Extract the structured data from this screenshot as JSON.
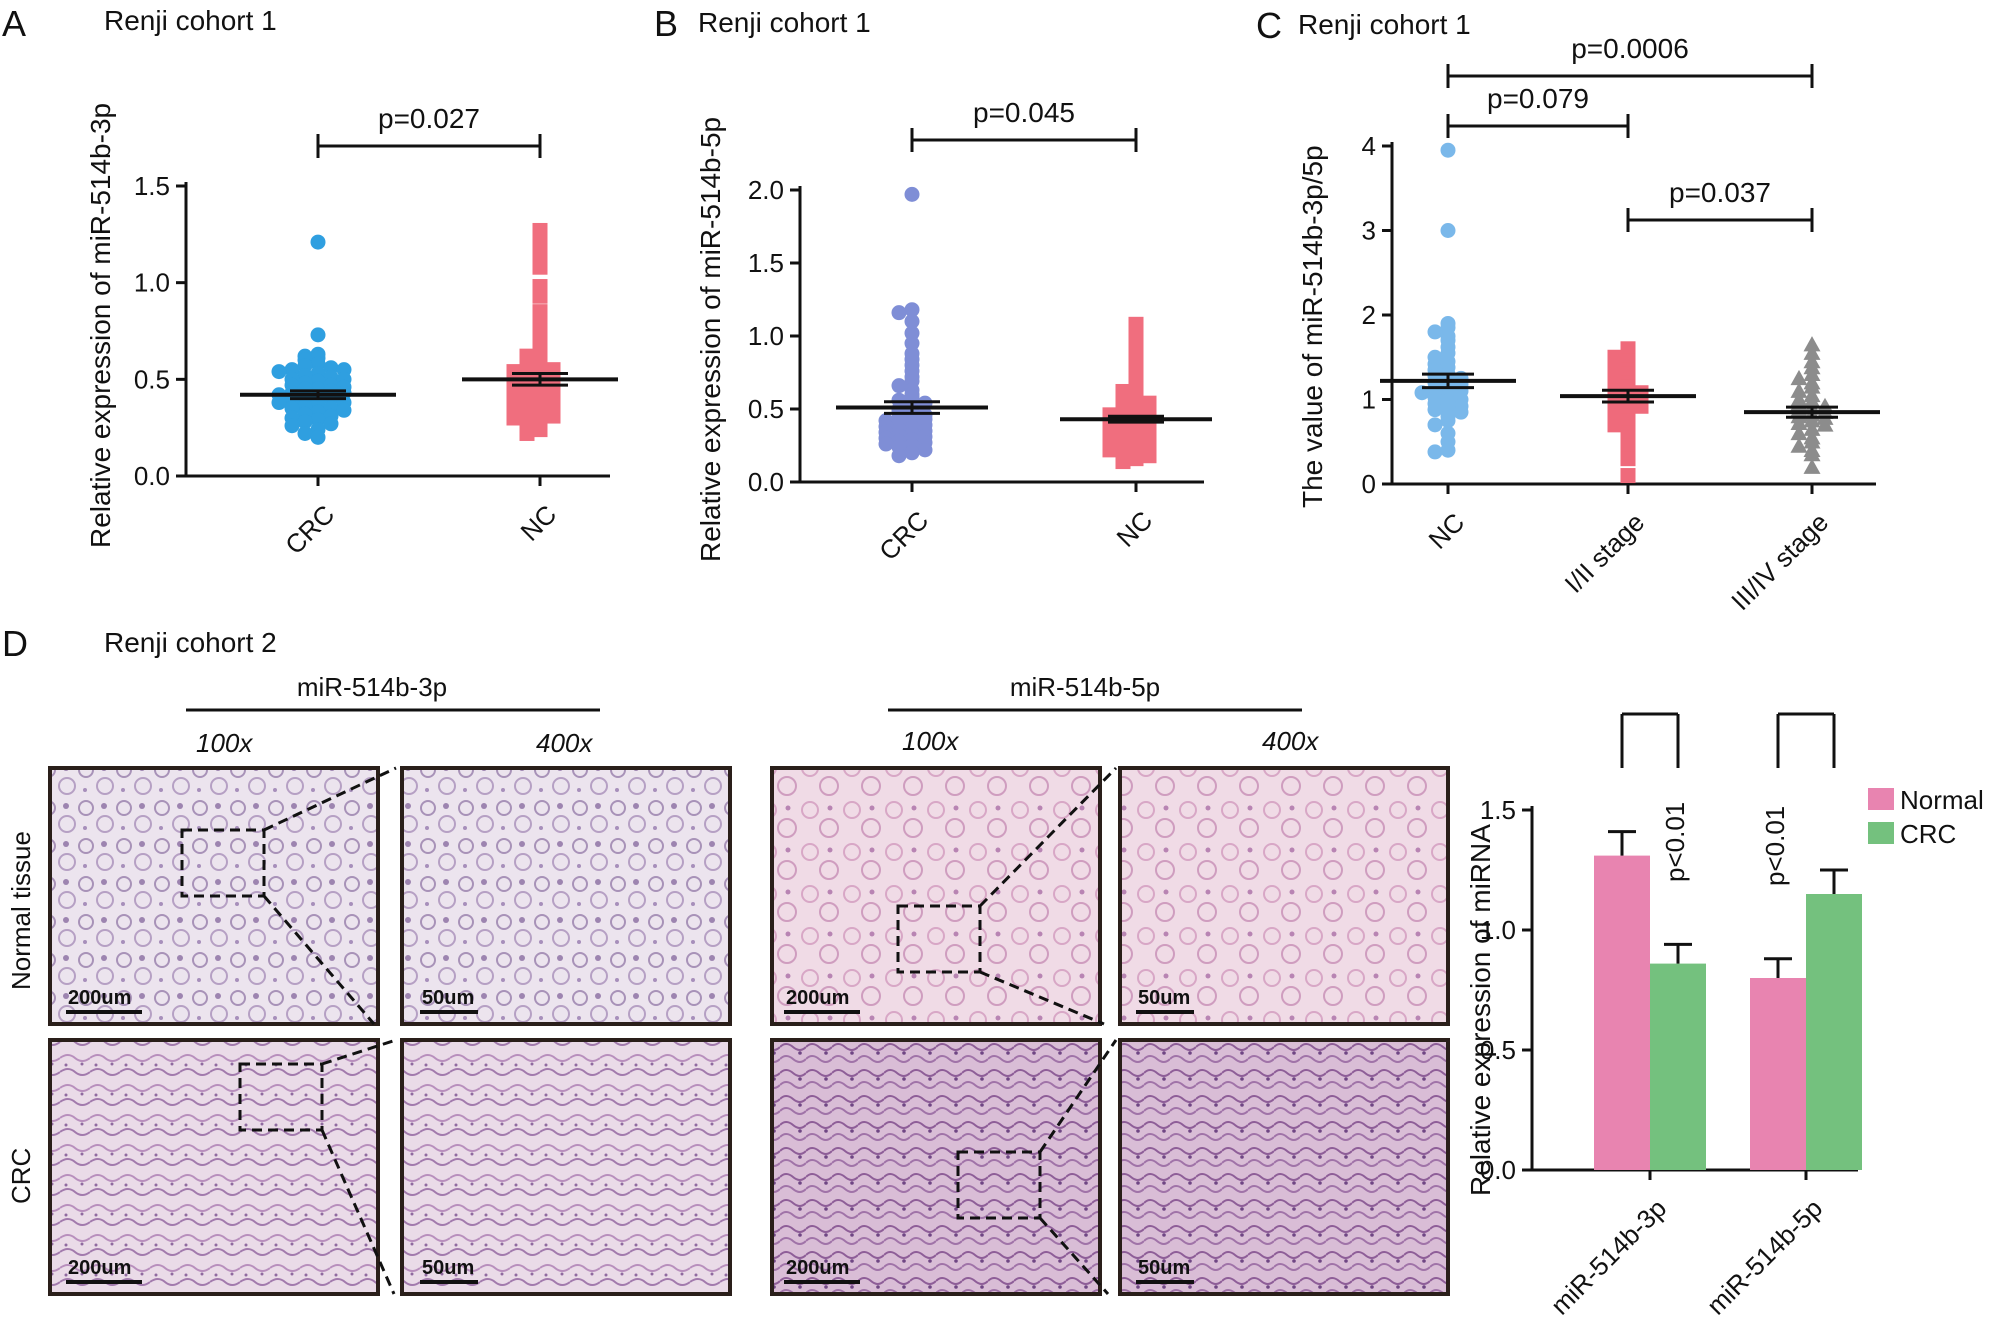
{
  "colors": {
    "crc_blue": "#2f9fe0",
    "nc_pink": "#f06e7e",
    "crc_purple": "#7f8ed6",
    "nc_light_blue": "#7ab8ea",
    "stage12_pink": "#ef6a7b",
    "stage34_gray": "#8c8c8c",
    "bar_normal": "#e884b0",
    "bar_crc": "#74c17e",
    "tissue_stain": "#c9a6c8"
  },
  "panels": {
    "A": {
      "letter": "A",
      "cohort": "Renji cohort 1"
    },
    "B": {
      "letter": "B",
      "cohort": "Renji cohort 1"
    },
    "C": {
      "letter": "C",
      "cohort": "Renji cohort 1"
    },
    "D": {
      "letter": "D",
      "cohort": "Renji cohort 2",
      "group_3p": "miR-514b-3p",
      "group_5p": "miR-514b-5p",
      "mag_100": "100x",
      "mag_400": "400x",
      "row_normal": "Normal tissue",
      "row_crc": "CRC",
      "scale_200": "200um",
      "scale_50": "50um"
    }
  },
  "chart_data": [
    {
      "id": "A",
      "type": "scatter",
      "title": "Renji cohort 1",
      "ylabel": "Relative expression of miR-514b-3p",
      "ylim": [
        0,
        1.5
      ],
      "yticks": [
        "0.0",
        "0.5",
        "1.0",
        "1.5"
      ],
      "categories": [
        "CRC",
        "NC"
      ],
      "means": [
        0.42,
        0.5
      ],
      "sem": [
        0.02,
        0.03
      ],
      "pvalues": [
        {
          "label": "p=0.027",
          "from": 0,
          "to": 1
        }
      ],
      "series": [
        {
          "name": "CRC",
          "marker": "circle",
          "values": [
            1.21,
            0.73,
            0.63,
            0.62,
            0.61,
            0.6,
            0.58,
            0.57,
            0.56,
            0.55,
            0.55,
            0.54,
            0.53,
            0.52,
            0.51,
            0.5,
            0.5,
            0.49,
            0.48,
            0.47,
            0.47,
            0.46,
            0.45,
            0.45,
            0.44,
            0.43,
            0.43,
            0.42,
            0.41,
            0.4,
            0.4,
            0.39,
            0.38,
            0.38,
            0.37,
            0.36,
            0.35,
            0.35,
            0.34,
            0.33,
            0.32,
            0.31,
            0.3,
            0.29,
            0.28,
            0.27,
            0.26,
            0.24,
            0.22,
            0.2
          ]
        },
        {
          "name": "NC",
          "marker": "square",
          "values": [
            1.27,
            1.22,
            1.15,
            1.08,
            0.98,
            0.93,
            0.85,
            0.8,
            0.75,
            0.7,
            0.66,
            0.64,
            0.62,
            0.6,
            0.58,
            0.57,
            0.55,
            0.54,
            0.53,
            0.52,
            0.51,
            0.5,
            0.49,
            0.48,
            0.47,
            0.46,
            0.45,
            0.44,
            0.43,
            0.42,
            0.41,
            0.4,
            0.39,
            0.38,
            0.37,
            0.36,
            0.35,
            0.34,
            0.33,
            0.32,
            0.31,
            0.3,
            0.28,
            0.26,
            0.24,
            0.22
          ]
        }
      ]
    },
    {
      "id": "B",
      "type": "scatter",
      "title": "Renji cohort 1",
      "ylabel": "Relative expression of miR-514b-5p",
      "ylim": [
        0,
        2.0
      ],
      "yticks": [
        "0.0",
        "0.5",
        "1.0",
        "1.5",
        "2.0"
      ],
      "categories": [
        "CRC",
        "NC"
      ],
      "means": [
        0.51,
        0.43
      ],
      "sem": [
        0.04,
        0.02
      ],
      "pvalues": [
        {
          "label": "p=0.045",
          "from": 0,
          "to": 1
        }
      ],
      "series": [
        {
          "name": "CRC",
          "marker": "circle",
          "values": [
            1.97,
            1.18,
            1.16,
            1.1,
            1.02,
            0.95,
            0.88,
            0.84,
            0.8,
            0.76,
            0.72,
            0.69,
            0.66,
            0.63,
            0.6,
            0.58,
            0.56,
            0.54,
            0.52,
            0.5,
            0.49,
            0.48,
            0.46,
            0.45,
            0.44,
            0.43,
            0.42,
            0.41,
            0.4,
            0.39,
            0.38,
            0.37,
            0.36,
            0.35,
            0.34,
            0.33,
            0.32,
            0.31,
            0.3,
            0.29,
            0.28,
            0.27,
            0.26,
            0.25,
            0.24,
            0.22,
            0.2,
            0.18
          ]
        },
        {
          "name": "NC",
          "marker": "square",
          "values": [
            1.08,
            1.02,
            0.96,
            0.9,
            0.82,
            0.75,
            0.7,
            0.65,
            0.62,
            0.58,
            0.56,
            0.54,
            0.52,
            0.5,
            0.49,
            0.48,
            0.47,
            0.46,
            0.45,
            0.44,
            0.43,
            0.42,
            0.41,
            0.4,
            0.39,
            0.38,
            0.37,
            0.36,
            0.35,
            0.34,
            0.33,
            0.32,
            0.31,
            0.3,
            0.29,
            0.28,
            0.27,
            0.26,
            0.25,
            0.24,
            0.23,
            0.22,
            0.21,
            0.2,
            0.18,
            0.16,
            0.14
          ]
        }
      ]
    },
    {
      "id": "C",
      "type": "scatter",
      "title": "Renji cohort 1",
      "ylabel": "The value of miR-514b-3p/5p",
      "ylim": [
        0,
        4
      ],
      "yticks": [
        "0",
        "1",
        "2",
        "3",
        "4"
      ],
      "categories": [
        "NC",
        "I/II stage",
        "III/IV stage"
      ],
      "means": [
        1.22,
        1.04,
        0.85
      ],
      "sem": [
        0.08,
        0.07,
        0.06
      ],
      "pvalues": [
        {
          "label": "p=0.0006",
          "from": 0,
          "to": 2
        },
        {
          "label": "p=0.079",
          "from": 0,
          "to": 1
        },
        {
          "label": "p=0.037",
          "from": 1,
          "to": 2
        }
      ],
      "series": [
        {
          "name": "NC",
          "marker": "circle",
          "values": [
            3.95,
            3.0,
            1.9,
            1.85,
            1.8,
            1.75,
            1.7,
            1.62,
            1.55,
            1.5,
            1.45,
            1.42,
            1.38,
            1.35,
            1.3,
            1.28,
            1.25,
            1.22,
            1.2,
            1.18,
            1.15,
            1.12,
            1.1,
            1.08,
            1.05,
            1.02,
            1.0,
            0.98,
            0.95,
            0.92,
            0.9,
            0.88,
            0.85,
            0.8,
            0.75,
            0.7,
            0.6,
            0.5,
            0.4,
            0.38
          ]
        },
        {
          "name": "I/II stage",
          "marker": "square",
          "values": [
            1.6,
            1.55,
            1.5,
            1.45,
            1.4,
            1.35,
            1.3,
            1.25,
            1.2,
            1.15,
            1.1,
            1.08,
            1.05,
            1.02,
            1.0,
            0.98,
            0.95,
            0.92,
            0.9,
            0.85,
            0.8,
            0.75,
            0.7,
            0.6,
            0.45,
            0.3,
            0.1
          ]
        },
        {
          "name": "III/IV stage",
          "marker": "triangle",
          "values": [
            1.65,
            1.55,
            1.45,
            1.38,
            1.3,
            1.25,
            1.2,
            1.15,
            1.1,
            1.05,
            1.0,
            0.98,
            0.95,
            0.92,
            0.9,
            0.88,
            0.85,
            0.82,
            0.8,
            0.78,
            0.75,
            0.72,
            0.7,
            0.65,
            0.6,
            0.55,
            0.5,
            0.45,
            0.4,
            0.35,
            0.2
          ]
        }
      ]
    },
    {
      "id": "D-bar",
      "type": "bar",
      "ylabel": "Relative expression of miRNA",
      "ylim": [
        0,
        1.5
      ],
      "yticks": [
        "0.0",
        "0.5",
        "1.0",
        "1.5"
      ],
      "categories": [
        "miR-514b-3p",
        "miR-514b-5p"
      ],
      "series": [
        {
          "name": "Normal",
          "values": [
            1.31,
            0.8
          ],
          "errors": [
            0.1,
            0.08
          ]
        },
        {
          "name": "CRC",
          "values": [
            0.86,
            1.15
          ],
          "errors": [
            0.08,
            0.1
          ]
        }
      ],
      "annotations": [
        "p<0.01",
        "p<0.01"
      ],
      "legend": [
        "Normal",
        "CRC"
      ]
    }
  ]
}
